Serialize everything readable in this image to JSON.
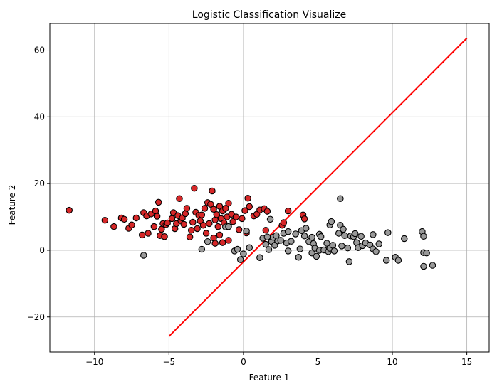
{
  "chart_data": {
    "type": "scatter",
    "title": "Logistic Classification Visualize",
    "xlabel": "Feature 1",
    "ylabel": "Feature 2",
    "xlim": [
      -13.0,
      16.5
    ],
    "ylim": [
      -30.5,
      68.0
    ],
    "xticks": [
      -10,
      -5,
      0,
      5,
      10,
      15
    ],
    "yticks": [
      -20,
      0,
      20,
      40,
      60
    ],
    "grid": true,
    "colors": {
      "class1": "#d62728",
      "class0": "#999999",
      "edge": "#000000",
      "boundary": "#ff0000",
      "grid": "#b0b0b0"
    },
    "series": [
      {
        "class": 1,
        "color": "#d62728",
        "points": [
          [
            -11.7,
            12.0
          ],
          [
            -9.3,
            9.0
          ],
          [
            -8.7,
            7.1
          ],
          [
            -8.2,
            9.7
          ],
          [
            -8.0,
            9.3
          ],
          [
            -7.7,
            6.6
          ],
          [
            -7.5,
            7.6
          ],
          [
            -7.2,
            9.7
          ],
          [
            -6.8,
            4.6
          ],
          [
            -6.7,
            11.3
          ],
          [
            -6.5,
            10.3
          ],
          [
            -6.4,
            5.1
          ],
          [
            -6.2,
            10.9
          ],
          [
            -6.0,
            7.1
          ],
          [
            -5.9,
            11.8
          ],
          [
            -5.8,
            10.2
          ],
          [
            -5.7,
            14.4
          ],
          [
            -5.6,
            4.4
          ],
          [
            -5.5,
            6.3
          ],
          [
            -5.4,
            8.0
          ],
          [
            -5.3,
            4.1
          ],
          [
            -5.2,
            7.7
          ],
          [
            -5.1,
            8.2
          ],
          [
            -4.8,
            9.5
          ],
          [
            -4.7,
            11.3
          ],
          [
            -4.6,
            6.5
          ],
          [
            -4.5,
            8.0
          ],
          [
            -4.4,
            10.4
          ],
          [
            -4.3,
            15.5
          ],
          [
            -4.2,
            8.9
          ],
          [
            -4.1,
            9.7
          ],
          [
            -4.0,
            7.8
          ],
          [
            -3.9,
            11.0
          ],
          [
            -3.8,
            12.6
          ],
          [
            -3.6,
            4.0
          ],
          [
            -3.5,
            6.0
          ],
          [
            -3.4,
            8.4
          ],
          [
            -3.3,
            18.6
          ],
          [
            -3.2,
            11.4
          ],
          [
            -3.1,
            6.5
          ],
          [
            -3.0,
            10.5
          ],
          [
            -2.9,
            8.8
          ],
          [
            -2.8,
            10.6
          ],
          [
            -2.7,
            7.5
          ],
          [
            -2.6,
            12.6
          ],
          [
            -2.5,
            5.1
          ],
          [
            -2.4,
            14.3
          ],
          [
            -2.3,
            8.0
          ],
          [
            -2.2,
            13.8
          ],
          [
            -2.1,
            17.8
          ],
          [
            -2.0,
            3.7
          ],
          [
            -2.0,
            12.3
          ],
          [
            -1.9,
            9.1
          ],
          [
            -1.9,
            2.1
          ],
          [
            -1.8,
            10.7
          ],
          [
            -1.7,
            7.1
          ],
          [
            -1.6,
            13.2
          ],
          [
            -1.6,
            4.6
          ],
          [
            -1.5,
            9.5
          ],
          [
            -1.4,
            2.3
          ],
          [
            -1.4,
            11.8
          ],
          [
            -1.3,
            8.2
          ],
          [
            -1.2,
            12.6
          ],
          [
            -1.1,
            10.0
          ],
          [
            -1.0,
            14.1
          ],
          [
            -1.0,
            3.0
          ],
          [
            -0.8,
            10.8
          ],
          [
            -0.7,
            8.6
          ],
          [
            -0.5,
            10.0
          ],
          [
            -0.3,
            6.2
          ],
          [
            -0.1,
            9.5
          ],
          [
            0.1,
            11.9
          ],
          [
            0.2,
            5.2
          ],
          [
            0.3,
            15.6
          ],
          [
            0.4,
            13.1
          ],
          [
            0.7,
            10.3
          ],
          [
            0.9,
            10.8
          ],
          [
            1.1,
            12.1
          ],
          [
            1.4,
            12.5
          ],
          [
            1.6,
            11.7
          ],
          [
            1.5,
            6.0
          ],
          [
            2.6,
            7.5
          ],
          [
            2.7,
            8.3
          ],
          [
            3.0,
            11.8
          ],
          [
            4.0,
            10.6
          ],
          [
            4.1,
            9.4
          ]
        ]
      },
      {
        "class": 0,
        "color": "#999999",
        "points": [
          [
            -6.7,
            -1.5
          ],
          [
            -2.8,
            0.3
          ],
          [
            -2.4,
            2.6
          ],
          [
            -1.2,
            7.0
          ],
          [
            -1.0,
            7.1
          ],
          [
            -0.6,
            -0.2
          ],
          [
            -0.4,
            0.3
          ],
          [
            -0.2,
            -2.8
          ],
          [
            0.0,
            -1.1
          ],
          [
            0.2,
            5.8
          ],
          [
            0.4,
            0.8
          ],
          [
            1.1,
            -2.2
          ],
          [
            1.3,
            3.6
          ],
          [
            1.5,
            1.8
          ],
          [
            1.6,
            4.0
          ],
          [
            1.7,
            0.2
          ],
          [
            1.8,
            9.3
          ],
          [
            1.9,
            2.6
          ],
          [
            2.0,
            3.9
          ],
          [
            2.1,
            1.5
          ],
          [
            2.2,
            4.4
          ],
          [
            2.3,
            2.8
          ],
          [
            2.5,
            3.0
          ],
          [
            2.7,
            5.1
          ],
          [
            2.9,
            2.2
          ],
          [
            3.0,
            -0.2
          ],
          [
            3.0,
            5.6
          ],
          [
            3.2,
            2.7
          ],
          [
            3.5,
            4.9
          ],
          [
            3.7,
            -2.1
          ],
          [
            3.8,
            0.4
          ],
          [
            3.9,
            5.9
          ],
          [
            4.1,
            4.3
          ],
          [
            4.2,
            6.6
          ],
          [
            4.4,
            2.6
          ],
          [
            4.6,
            -0.8
          ],
          [
            4.6,
            3.9
          ],
          [
            4.7,
            2.0
          ],
          [
            4.8,
            0.6
          ],
          [
            4.9,
            -1.8
          ],
          [
            5.1,
            4.8
          ],
          [
            5.1,
            0.0
          ],
          [
            5.2,
            4.1
          ],
          [
            5.4,
            0.1
          ],
          [
            5.6,
            2.1
          ],
          [
            5.7,
            -0.4
          ],
          [
            5.8,
            0.6
          ],
          [
            5.8,
            7.6
          ],
          [
            5.9,
            8.6
          ],
          [
            6.0,
            1.5
          ],
          [
            6.1,
            -0.2
          ],
          [
            6.4,
            5.1
          ],
          [
            6.5,
            15.5
          ],
          [
            6.5,
            7.5
          ],
          [
            6.6,
            1.3
          ],
          [
            6.7,
            6.3
          ],
          [
            6.8,
            4.4
          ],
          [
            7.0,
            0.7
          ],
          [
            7.1,
            -3.4
          ],
          [
            7.2,
            4.3
          ],
          [
            7.4,
            4.1
          ],
          [
            7.5,
            5.0
          ],
          [
            7.6,
            2.3
          ],
          [
            7.7,
            0.8
          ],
          [
            7.9,
            4.2
          ],
          [
            8.0,
            1.4
          ],
          [
            8.2,
            2.2
          ],
          [
            8.5,
            1.6
          ],
          [
            8.7,
            4.7
          ],
          [
            8.7,
            0.4
          ],
          [
            8.9,
            -0.4
          ],
          [
            9.1,
            1.9
          ],
          [
            9.6,
            -3.0
          ],
          [
            9.7,
            5.3
          ],
          [
            10.2,
            -2.1
          ],
          [
            10.4,
            -3.0
          ],
          [
            10.8,
            3.5
          ],
          [
            12.0,
            5.6
          ],
          [
            12.1,
            4.2
          ],
          [
            12.1,
            -0.7
          ],
          [
            12.1,
            -4.8
          ],
          [
            12.3,
            -0.8
          ],
          [
            12.7,
            -4.5
          ]
        ]
      }
    ],
    "boundary": {
      "x": [
        -5.0,
        15.0
      ],
      "y": [
        -25.8,
        63.6
      ]
    }
  }
}
